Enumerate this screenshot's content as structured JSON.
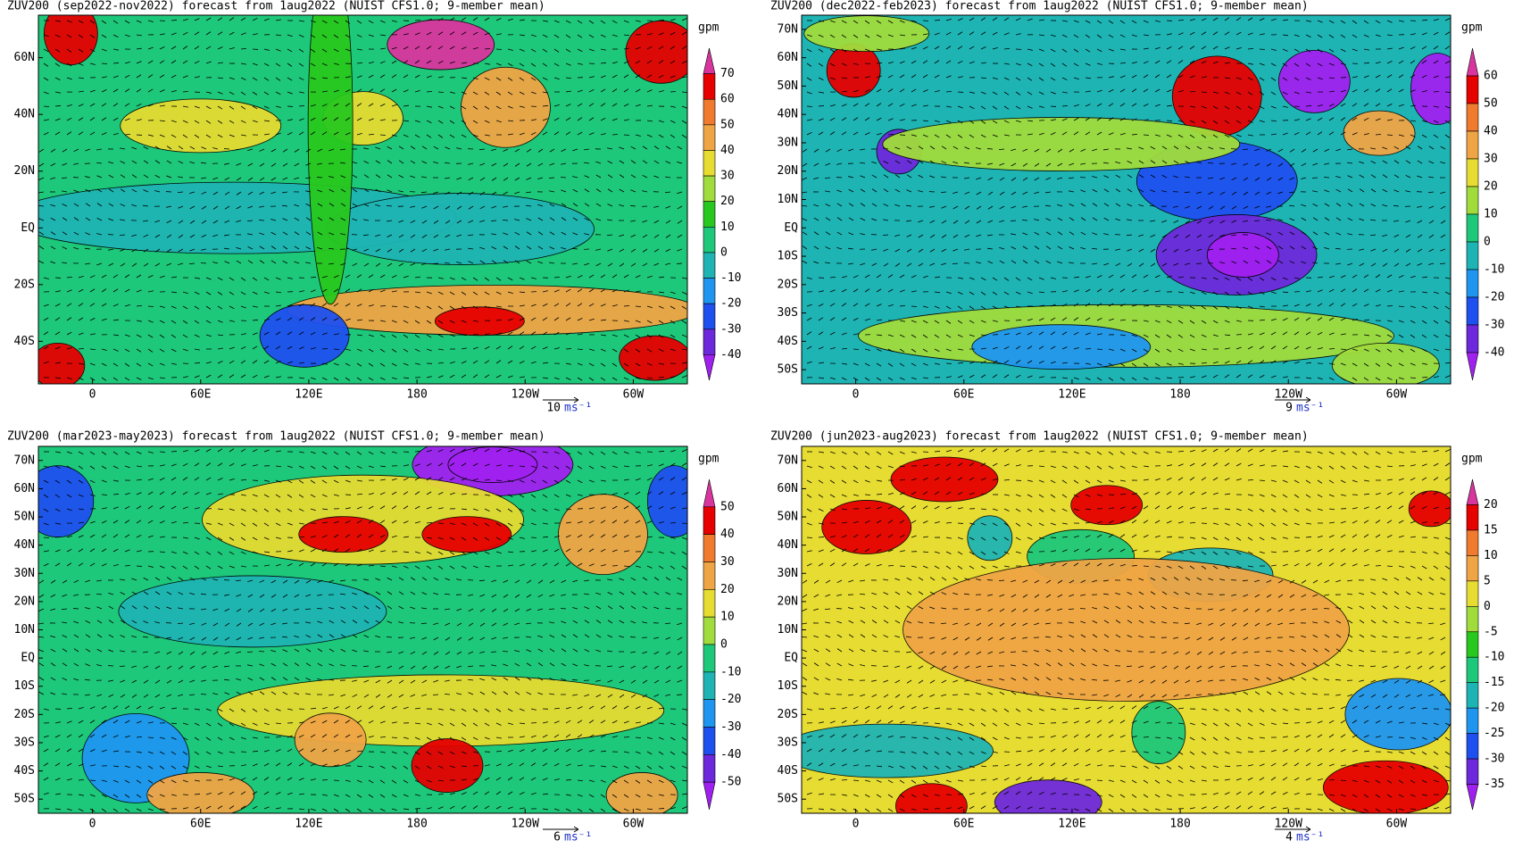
{
  "panels": [
    {
      "title": "ZUV200 (sep2022-nov2022) forecast from 1aug2022 (NUIST CFS1.0; 9-member mean)",
      "x_labels": [
        "0",
        "60E",
        "120E",
        "180",
        "120W",
        "60W"
      ],
      "y_labels": [
        "60N",
        "40N",
        "20N",
        "EQ",
        "20S",
        "40S"
      ],
      "colorbar": {
        "unit": "gpm",
        "levels": [
          70,
          60,
          50,
          40,
          30,
          20,
          10,
          0,
          -10,
          -20,
          -30,
          -40
        ],
        "colors": [
          "#d9359e",
          "#e60000",
          "#f07a2d",
          "#f0a545",
          "#e6dc32",
          "#a0dc3c",
          "#28c81e",
          "#1ec87a",
          "#1eb4b4",
          "#1e96f0",
          "#1e50f0",
          "#6e28dc",
          "#a020f0"
        ]
      },
      "reference_vector": {
        "value": "10",
        "unit": "ms⁻¹"
      }
    },
    {
      "title": "ZUV200 (dec2022-feb2023) forecast from 1aug2022 (NUIST CFS1.0; 9-member mean)",
      "x_labels": [
        "0",
        "60E",
        "120E",
        "180",
        "120W",
        "60W"
      ],
      "y_labels": [
        "70N",
        "60N",
        "50N",
        "40N",
        "30N",
        "20N",
        "10N",
        "EQ",
        "10S",
        "20S",
        "30S",
        "40S",
        "50S"
      ],
      "colorbar": {
        "unit": "gpm",
        "levels": [
          60,
          50,
          40,
          30,
          20,
          10,
          0,
          -10,
          -20,
          -30,
          -40
        ],
        "colors": [
          "#d9359e",
          "#e60000",
          "#f07a2d",
          "#f0a545",
          "#e6dc32",
          "#a0dc3c",
          "#1ec87a",
          "#1eb4b4",
          "#1e96f0",
          "#1e50f0",
          "#6e28dc",
          "#a020f0"
        ]
      },
      "reference_vector": {
        "value": "9",
        "unit": "ms⁻¹"
      }
    },
    {
      "title": "ZUV200 (mar2023-may2023) forecast from 1aug2022 (NUIST CFS1.0; 9-member mean)",
      "x_labels": [
        "0",
        "60E",
        "120E",
        "180",
        "120W",
        "60W"
      ],
      "y_labels": [
        "70N",
        "60N",
        "50N",
        "40N",
        "30N",
        "20N",
        "10N",
        "EQ",
        "10S",
        "20S",
        "30S",
        "40S",
        "50S"
      ],
      "colorbar": {
        "unit": "gpm",
        "levels": [
          50,
          40,
          30,
          20,
          10,
          0,
          -10,
          -20,
          -30,
          -40,
          -50
        ],
        "colors": [
          "#d9359e",
          "#e60000",
          "#f07a2d",
          "#f0a545",
          "#e6dc32",
          "#a0dc3c",
          "#1ec87a",
          "#1eb4b4",
          "#1e96f0",
          "#1e50f0",
          "#6e28dc",
          "#a020f0"
        ]
      },
      "reference_vector": {
        "value": "6",
        "unit": "ms⁻¹"
      }
    },
    {
      "title": "ZUV200 (jun2023-aug2023) forecast from 1aug2022 (NUIST CFS1.0; 9-member mean)",
      "x_labels": [
        "0",
        "60E",
        "120E",
        "180",
        "120W",
        "60W"
      ],
      "y_labels": [
        "70N",
        "60N",
        "50N",
        "40N",
        "30N",
        "20N",
        "10N",
        "EQ",
        "10S",
        "20S",
        "30S",
        "40S",
        "50S"
      ],
      "colorbar": {
        "unit": "gpm",
        "levels": [
          20,
          15,
          10,
          5,
          0,
          -5,
          -10,
          -15,
          -20,
          -25,
          -30,
          -35
        ],
        "colors": [
          "#d9359e",
          "#e60000",
          "#f07a2d",
          "#f0a545",
          "#e6dc32",
          "#a0dc3c",
          "#28c81e",
          "#1ec87a",
          "#1eb4b4",
          "#1e96f0",
          "#1e50f0",
          "#6e28dc",
          "#a020f0"
        ]
      },
      "reference_vector": {
        "value": "4",
        "unit": "ms⁻¹"
      }
    }
  ]
}
